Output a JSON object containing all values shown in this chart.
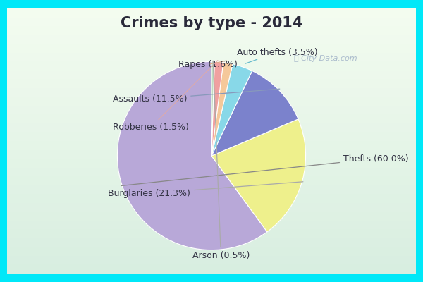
{
  "title": "Crimes by type - 2014",
  "labels": [
    "Thefts",
    "Burglaries",
    "Assaults",
    "Auto thefts",
    "Rapes",
    "Robberies",
    "Arson"
  ],
  "display_labels": [
    "Thefts (60.0%)",
    "Burglaries (21.3%)",
    "Assaults (11.5%)",
    "Auto thefts (3.5%)",
    "Rapes (1.6%)",
    "Robberies (1.5%)",
    "Arson (0.5%)"
  ],
  "percentages": [
    60.0,
    21.3,
    11.5,
    3.5,
    1.6,
    1.5,
    0.5
  ],
  "colors": [
    "#b8a8d8",
    "#eef08c",
    "#7b82cc",
    "#88d8e8",
    "#f5c89a",
    "#f0a0a0",
    "#c0dcc0"
  ],
  "bg_cyan": "#00e8f8",
  "bg_gradient_top": "#deeee8",
  "bg_gradient_bottom": "#d8ece0",
  "title_color": "#2a2a3a",
  "title_fontsize": 15,
  "label_fontsize": 9,
  "startangle": 90,
  "watermark_color": "#aabbcc",
  "watermark_text": "ⓘ City-Data.com"
}
